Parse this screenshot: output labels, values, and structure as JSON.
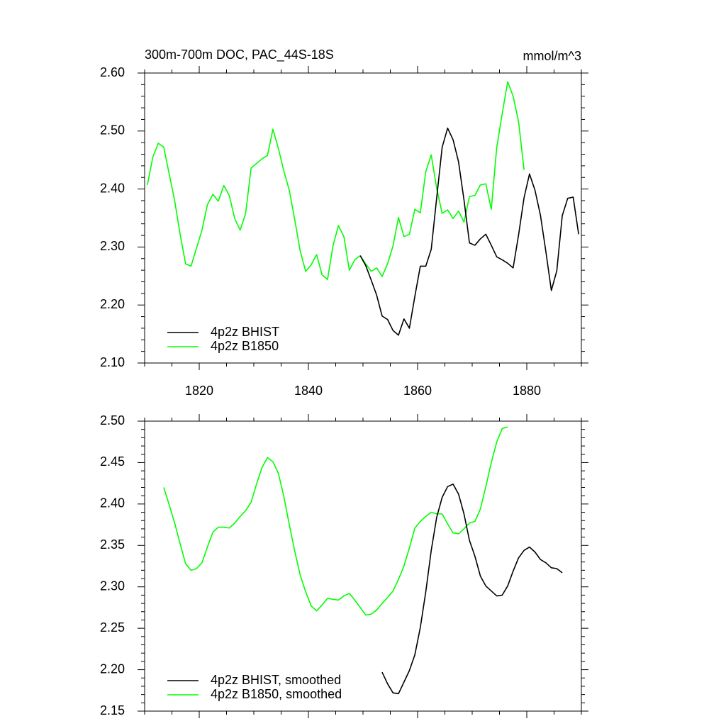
{
  "chart_data": [
    {
      "type": "line",
      "title": "300m-700m DOC, PAC_44S-18S",
      "units": "mmol/m^3",
      "x": [
        1810.5,
        1811.5,
        1812.5,
        1813.5,
        1814.5,
        1815.5,
        1816.5,
        1817.5,
        1818.5,
        1819.5,
        1820.5,
        1821.5,
        1822.5,
        1823.5,
        1824.5,
        1825.5,
        1826.5,
        1827.5,
        1828.5,
        1829.5,
        1830.5,
        1831.5,
        1832.5,
        1833.5,
        1834.5,
        1835.5,
        1836.5,
        1837.5,
        1838.5,
        1839.5,
        1840.5,
        1841.5,
        1842.5,
        1843.5,
        1844.5,
        1845.5,
        1846.5,
        1847.5,
        1848.5,
        1849.5,
        1850.5,
        1851.5,
        1852.5,
        1853.5,
        1854.5,
        1855.5,
        1856.5,
        1857.5,
        1858.5,
        1859.5,
        1860.5,
        1861.5,
        1862.5,
        1863.5,
        1864.5,
        1865.5,
        1866.5,
        1867.5,
        1868.5,
        1869.5,
        1870.5,
        1871.5,
        1872.5,
        1873.5,
        1874.5,
        1875.5,
        1876.5,
        1877.5,
        1878.5,
        1879.5,
        1880.5,
        1881.5,
        1882.5,
        1883.5,
        1884.5,
        1885.5,
        1886.5,
        1887.5,
        1888.5,
        1889.5
      ],
      "series": [
        {
          "name": "4p2z BHIST",
          "color": "#000000",
          "values": [
            null,
            null,
            null,
            null,
            null,
            null,
            null,
            null,
            null,
            null,
            null,
            null,
            null,
            null,
            null,
            null,
            null,
            null,
            null,
            null,
            null,
            null,
            null,
            null,
            null,
            null,
            null,
            null,
            null,
            null,
            null,
            null,
            null,
            null,
            null,
            null,
            null,
            null,
            null,
            2.285,
            2.268,
            2.243,
            2.217,
            2.181,
            2.175,
            2.156,
            2.148,
            2.176,
            2.16,
            2.215,
            2.267,
            2.267,
            2.296,
            2.385,
            2.472,
            2.505,
            2.485,
            2.447,
            2.381,
            2.307,
            2.303,
            2.314,
            2.322,
            2.303,
            2.283,
            2.278,
            2.272,
            2.264,
            2.321,
            2.385,
            2.426,
            2.398,
            2.355,
            2.292,
            2.225,
            2.259,
            2.354,
            2.384,
            2.386,
            2.322
          ]
        },
        {
          "name": "4p2z B1850",
          "color": "#00ff00",
          "values": [
            2.407,
            2.455,
            2.479,
            2.472,
            2.426,
            2.38,
            2.322,
            2.271,
            2.267,
            2.298,
            2.329,
            2.373,
            2.391,
            2.379,
            2.406,
            2.389,
            2.349,
            2.329,
            2.358,
            2.436,
            2.444,
            2.452,
            2.458,
            2.503,
            2.47,
            2.431,
            2.398,
            2.347,
            2.293,
            2.258,
            2.269,
            2.287,
            2.252,
            2.244,
            2.302,
            2.337,
            2.318,
            2.26,
            2.278,
            2.285,
            2.271,
            2.258,
            2.264,
            2.249,
            2.271,
            2.302,
            2.351,
            2.318,
            2.322,
            2.365,
            2.359,
            2.43,
            2.459,
            2.401,
            2.358,
            2.364,
            2.349,
            2.362,
            2.343,
            2.387,
            2.389,
            2.407,
            2.409,
            2.365,
            2.472,
            2.53,
            2.585,
            2.56,
            2.516,
            2.433,
            null,
            null,
            null,
            null,
            null,
            null,
            null,
            null,
            null,
            null
          ]
        }
      ],
      "xlim": [
        1810,
        1890
      ],
      "xticks": [
        1820,
        1840,
        1860,
        1880
      ],
      "ylim": [
        2.1,
        2.6
      ],
      "yticks": [
        {
          "value": 2.1,
          "label": "2.10"
        },
        {
          "value": 2.2,
          "label": "2.20"
        },
        {
          "value": 2.3,
          "label": "2.30"
        },
        {
          "value": 2.4,
          "label": "2.40"
        },
        {
          "value": 2.5,
          "label": "2.50"
        },
        {
          "value": 2.6,
          "label": "2.60"
        }
      ],
      "legend": "lower left"
    },
    {
      "type": "line",
      "x": [
        1810.5,
        1811.5,
        1812.5,
        1813.5,
        1814.5,
        1815.5,
        1816.5,
        1817.5,
        1818.5,
        1819.5,
        1820.5,
        1821.5,
        1822.5,
        1823.5,
        1824.5,
        1825.5,
        1826.5,
        1827.5,
        1828.5,
        1829.5,
        1830.5,
        1831.5,
        1832.5,
        1833.5,
        1834.5,
        1835.5,
        1836.5,
        1837.5,
        1838.5,
        1839.5,
        1840.5,
        1841.5,
        1842.5,
        1843.5,
        1844.5,
        1845.5,
        1846.5,
        1847.5,
        1848.5,
        1849.5,
        1850.5,
        1851.5,
        1852.5,
        1853.5,
        1854.5,
        1855.5,
        1856.5,
        1857.5,
        1858.5,
        1859.5,
        1860.5,
        1861.5,
        1862.5,
        1863.5,
        1864.5,
        1865.5,
        1866.5,
        1867.5,
        1868.5,
        1869.5,
        1870.5,
        1871.5,
        1872.5,
        1873.5,
        1874.5,
        1875.5,
        1876.5,
        1877.5,
        1878.5,
        1879.5,
        1880.5,
        1881.5,
        1882.5,
        1883.5,
        1884.5,
        1885.5,
        1886.5,
        1887.5,
        1888.5,
        1889.5
      ],
      "series": [
        {
          "name": "4p2z BHIST, smoothed",
          "color": "#000000",
          "values": [
            null,
            null,
            null,
            null,
            null,
            null,
            null,
            null,
            null,
            null,
            null,
            null,
            null,
            null,
            null,
            null,
            null,
            null,
            null,
            null,
            null,
            null,
            null,
            null,
            null,
            null,
            null,
            null,
            null,
            null,
            null,
            null,
            null,
            null,
            null,
            null,
            null,
            null,
            null,
            null,
            null,
            null,
            null,
            2.197,
            2.183,
            2.172,
            2.171,
            2.185,
            2.199,
            2.218,
            2.251,
            2.294,
            2.344,
            2.384,
            2.408,
            2.421,
            2.424,
            2.412,
            2.388,
            2.356,
            2.337,
            2.313,
            2.301,
            2.295,
            2.289,
            2.29,
            2.301,
            2.319,
            2.335,
            2.344,
            2.348,
            2.342,
            2.333,
            2.329,
            2.323,
            2.322,
            2.317,
            null,
            null,
            null
          ]
        },
        {
          "name": "4p2z B1850, smoothed",
          "color": "#00ff00",
          "values": [
            null,
            null,
            null,
            2.42,
            2.399,
            2.377,
            2.352,
            2.328,
            2.32,
            2.322,
            2.329,
            2.348,
            2.366,
            2.372,
            2.372,
            2.371,
            2.377,
            2.385,
            2.392,
            2.402,
            2.424,
            2.444,
            2.456,
            2.451,
            2.437,
            2.409,
            2.375,
            2.343,
            2.314,
            2.294,
            2.277,
            2.271,
            2.278,
            2.286,
            2.285,
            2.284,
            2.289,
            2.292,
            2.284,
            2.275,
            2.266,
            2.267,
            2.272,
            2.28,
            2.287,
            2.295,
            2.309,
            2.325,
            2.347,
            2.371,
            2.379,
            2.385,
            2.39,
            2.388,
            2.388,
            2.376,
            2.365,
            2.364,
            2.37,
            2.377,
            2.379,
            2.394,
            2.421,
            2.45,
            2.475,
            2.491,
            2.493,
            null,
            null,
            null,
            null,
            null,
            null,
            null,
            null,
            null,
            null,
            null,
            null,
            null
          ]
        }
      ],
      "xlim": [
        1810,
        1890
      ],
      "ylim": [
        2.15,
        2.5
      ],
      "yticks": [
        {
          "value": 2.15,
          "label": "2.15"
        },
        {
          "value": 2.2,
          "label": "2.20"
        },
        {
          "value": 2.25,
          "label": "2.25"
        },
        {
          "value": 2.3,
          "label": "2.30"
        },
        {
          "value": 2.35,
          "label": "2.35"
        },
        {
          "value": 2.4,
          "label": "2.40"
        },
        {
          "value": 2.45,
          "label": "2.45"
        },
        {
          "value": 2.5,
          "label": "2.50"
        }
      ],
      "legend": "lower left"
    }
  ]
}
